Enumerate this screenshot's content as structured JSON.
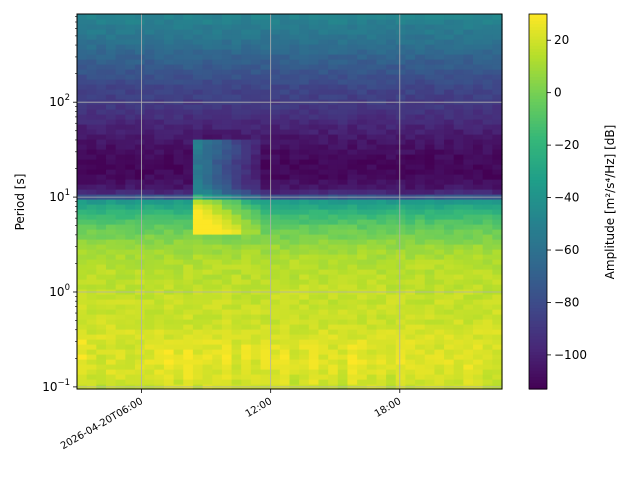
{
  "chart_data": {
    "type": "heatmap",
    "title": "",
    "xlabel": "",
    "ylabel": "Period [s]",
    "y_scale": "log",
    "ylim": [
      0.095,
      850
    ],
    "x_range": [
      "2026-04-20T03:00:00",
      "2026-04-20T22:45:00"
    ],
    "x_ticks": [
      {
        "time": "2026-04-20T06:00:00",
        "label": "2026-04-20T06:00"
      },
      {
        "time": "2026-04-20T12:00:00",
        "label": "12:00"
      },
      {
        "time": "2026-04-20T18:00:00",
        "label": "18:00"
      }
    ],
    "y_ticks": [
      {
        "value": 0.1,
        "base": "10",
        "exp": "−1"
      },
      {
        "value": 1,
        "base": "10",
        "exp": "0"
      },
      {
        "value": 10,
        "base": "10",
        "exp": "1"
      },
      {
        "value": 100,
        "base": "10",
        "exp": "2"
      }
    ],
    "grid": true,
    "colormap": "viridis",
    "colorbar": {
      "label": "Amplitude [m²/s⁴/Hz] [dB]",
      "range": [
        -113,
        30
      ],
      "ticks": [
        {
          "value": 20,
          "label": "20"
        },
        {
          "value": 0,
          "label": "0"
        },
        {
          "value": -20,
          "label": "−20"
        },
        {
          "value": -40,
          "label": "−40"
        },
        {
          "value": -60,
          "label": "−60"
        },
        {
          "value": -80,
          "label": "−80"
        },
        {
          "value": -100,
          "label": "−100"
        }
      ]
    },
    "profile_period_s": [
      0.1,
      0.14,
      0.2,
      0.3,
      0.5,
      1,
      2,
      3,
      5,
      7,
      9,
      10,
      11,
      13,
      17,
      22,
      30,
      45,
      60,
      80,
      100,
      150,
      200,
      300,
      500,
      850
    ],
    "profile_amplitude_db": [
      18,
      22,
      23,
      22,
      19,
      17,
      14,
      8,
      -6,
      -20,
      -35,
      -72,
      -95,
      -105,
      -110,
      -111,
      -108,
      -103,
      -97,
      -92,
      -88,
      -82,
      -76,
      -68,
      -57,
      -48
    ],
    "event": {
      "start": "2026-04-20T08:30:00",
      "end": "2026-04-20T11:30:00",
      "period_s": [
        4,
        40
      ]
    }
  }
}
